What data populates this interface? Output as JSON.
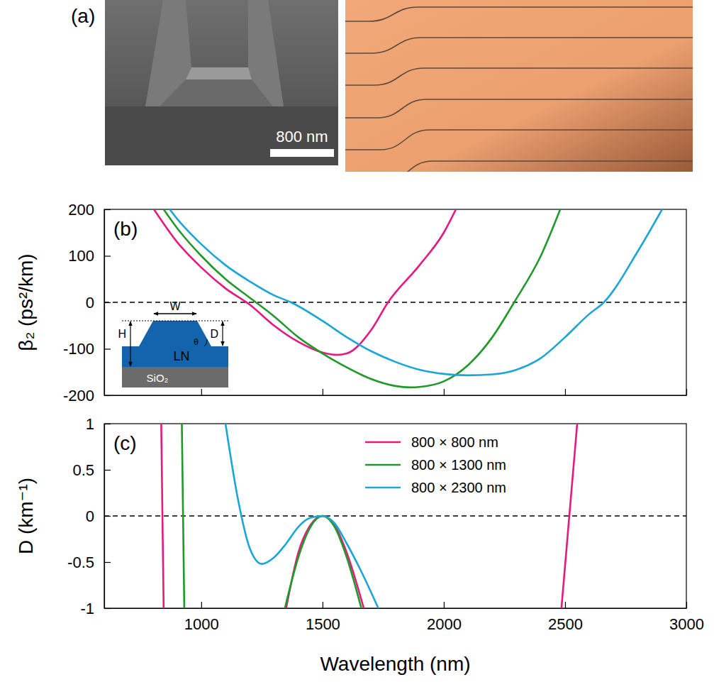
{
  "panel_a": {
    "label": "(a)",
    "scale_bar": "800 nm"
  },
  "chart_data": [
    {
      "type": "line",
      "label": "(b)",
      "y_label": "β₂ (ps²/km)",
      "xlim": [
        600,
        3000
      ],
      "xticks": [
        1000,
        1500,
        2000,
        2500,
        3000
      ],
      "ylim": [
        -200,
        200
      ],
      "yticks": [
        -200,
        -100,
        0,
        100,
        200
      ],
      "tick_labels": "y",
      "hline": 0,
      "inset_labels": [
        "W",
        "H",
        "D",
        "θ",
        "LN",
        "SiO₂"
      ],
      "series": [
        {
          "color": "#e6197f",
          "x": [
            805,
            900,
            1000,
            1100,
            1200,
            1300,
            1400,
            1500,
            1560,
            1600,
            1700,
            1770,
            1900,
            2000,
            2050
          ],
          "values": [
            200,
            130,
            75,
            30,
            -5,
            -50,
            -85,
            -108,
            -113,
            -110,
            -60,
            0,
            80,
            150,
            200
          ]
        },
        {
          "color": "#1f9a2a",
          "x": [
            845,
            900,
            1000,
            1100,
            1200,
            1300,
            1400,
            1500,
            1600,
            1700,
            1800,
            1860,
            1900,
            2000,
            2100,
            2200,
            2290,
            2400,
            2480
          ],
          "values": [
            200,
            160,
            100,
            50,
            10,
            -30,
            -75,
            -110,
            -140,
            -165,
            -180,
            -183,
            -182,
            -170,
            -135,
            -75,
            0,
            100,
            200
          ]
        },
        {
          "color": "#1aa6d6",
          "x": [
            870,
            900,
            1000,
            1100,
            1200,
            1300,
            1370,
            1500,
            1600,
            1700,
            1800,
            1900,
            2000,
            2100,
            2200,
            2300,
            2400,
            2500,
            2600,
            2660,
            2800,
            2900
          ],
          "values": [
            200,
            180,
            125,
            80,
            45,
            15,
            0,
            -40,
            -75,
            -105,
            -128,
            -145,
            -154,
            -157,
            -155,
            -145,
            -120,
            -75,
            -25,
            0,
            110,
            200
          ]
        }
      ]
    },
    {
      "type": "line",
      "label": "(c)",
      "x_label": "Wavelength (nm)",
      "y_label": "D (km⁻¹)",
      "xlim": [
        600,
        3000
      ],
      "xticks": [
        1000,
        1500,
        2000,
        2500,
        3000
      ],
      "ylim": [
        -1,
        1
      ],
      "yticks": [
        -1,
        -0.5,
        0,
        0.5,
        1
      ],
      "hline": 0,
      "legend": "top",
      "series": [
        {
          "name": "800 × 800 nm",
          "color": "#e6197f",
          "x": [
            835,
            845,
            null,
            1350,
            1400,
            1450,
            1500,
            1550,
            1600,
            1670,
            null,
            2485,
            2550
          ],
          "values": [
            1,
            -1,
            null,
            -1,
            -0.4,
            -0.1,
            0,
            -0.1,
            -0.4,
            -1,
            null,
            -1,
            1
          ]
        },
        {
          "name": "800 × 1300 nm",
          "color": "#1f9a2a",
          "x": [
            920,
            930,
            null,
            1345,
            1400,
            1450,
            1500,
            1550,
            1600,
            1660
          ],
          "values": [
            1,
            -1,
            null,
            -1,
            -0.45,
            -0.12,
            0,
            -0.12,
            -0.45,
            -1
          ]
        },
        {
          "name": "800 × 2300 nm",
          "color": "#1aa6d6",
          "x": [
            1100,
            1150,
            1200,
            1250,
            1300,
            1350,
            1400,
            1450,
            1500,
            1550,
            1600,
            1650,
            1730
          ],
          "values": [
            1,
            0.2,
            -0.35,
            -0.52,
            -0.45,
            -0.3,
            -0.12,
            -0.02,
            0,
            -0.08,
            -0.3,
            -0.55,
            -1
          ]
        }
      ]
    }
  ]
}
